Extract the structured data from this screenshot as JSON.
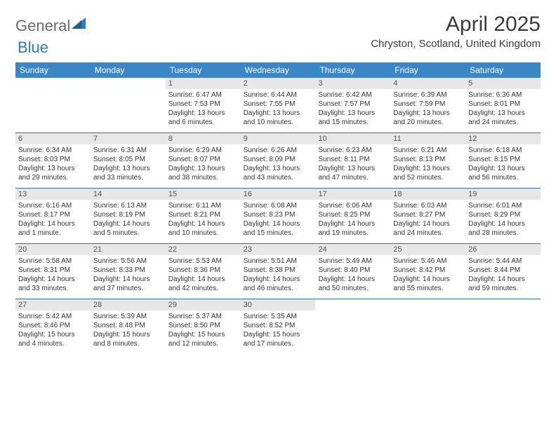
{
  "logo": {
    "text1": "General",
    "text2": "Blue"
  },
  "title": "April 2025",
  "location": "Chryston, Scotland, United Kingdom",
  "colors": {
    "header_bg": "#3b86c6",
    "header_text": "#ffffff",
    "week_divider": "#3e6d97",
    "daynum_bg": "#e7e7e7",
    "daynum_text": "#555555",
    "body_text": "#333333",
    "logo_gray": "#6a6a6a",
    "logo_blue": "#2d7cc1"
  },
  "day_names": [
    "Sunday",
    "Monday",
    "Tuesday",
    "Wednesday",
    "Thursday",
    "Friday",
    "Saturday"
  ],
  "style": {
    "font_family": "Arial",
    "title_fontsize": 30,
    "location_fontsize": 15,
    "header_fontsize": 12,
    "daynum_fontsize": 11,
    "body_fontsize": 10
  },
  "weeks": [
    [
      {
        "empty": true
      },
      {
        "empty": true
      },
      {
        "day": "1",
        "sunrise": "Sunrise: 6:47 AM",
        "sunset": "Sunset: 7:53 PM",
        "daylight": "Daylight: 13 hours and 6 minutes."
      },
      {
        "day": "2",
        "sunrise": "Sunrise: 6:44 AM",
        "sunset": "Sunset: 7:55 PM",
        "daylight": "Daylight: 13 hours and 10 minutes."
      },
      {
        "day": "3",
        "sunrise": "Sunrise: 6:42 AM",
        "sunset": "Sunset: 7:57 PM",
        "daylight": "Daylight: 13 hours and 15 minutes."
      },
      {
        "day": "4",
        "sunrise": "Sunrise: 6:39 AM",
        "sunset": "Sunset: 7:59 PM",
        "daylight": "Daylight: 13 hours and 20 minutes."
      },
      {
        "day": "5",
        "sunrise": "Sunrise: 6:36 AM",
        "sunset": "Sunset: 8:01 PM",
        "daylight": "Daylight: 13 hours and 24 minutes."
      }
    ],
    [
      {
        "day": "6",
        "sunrise": "Sunrise: 6:34 AM",
        "sunset": "Sunset: 8:03 PM",
        "daylight": "Daylight: 13 hours and 29 minutes."
      },
      {
        "day": "7",
        "sunrise": "Sunrise: 6:31 AM",
        "sunset": "Sunset: 8:05 PM",
        "daylight": "Daylight: 13 hours and 33 minutes."
      },
      {
        "day": "8",
        "sunrise": "Sunrise: 6:29 AM",
        "sunset": "Sunset: 8:07 PM",
        "daylight": "Daylight: 13 hours and 38 minutes."
      },
      {
        "day": "9",
        "sunrise": "Sunrise: 6:26 AM",
        "sunset": "Sunset: 8:09 PM",
        "daylight": "Daylight: 13 hours and 43 minutes."
      },
      {
        "day": "10",
        "sunrise": "Sunrise: 6:23 AM",
        "sunset": "Sunset: 8:11 PM",
        "daylight": "Daylight: 13 hours and 47 minutes."
      },
      {
        "day": "11",
        "sunrise": "Sunrise: 6:21 AM",
        "sunset": "Sunset: 8:13 PM",
        "daylight": "Daylight: 13 hours and 52 minutes."
      },
      {
        "day": "12",
        "sunrise": "Sunrise: 6:18 AM",
        "sunset": "Sunset: 8:15 PM",
        "daylight": "Daylight: 13 hours and 56 minutes."
      }
    ],
    [
      {
        "day": "13",
        "sunrise": "Sunrise: 6:16 AM",
        "sunset": "Sunset: 8:17 PM",
        "daylight": "Daylight: 14 hours and 1 minute."
      },
      {
        "day": "14",
        "sunrise": "Sunrise: 6:13 AM",
        "sunset": "Sunset: 8:19 PM",
        "daylight": "Daylight: 14 hours and 5 minutes."
      },
      {
        "day": "15",
        "sunrise": "Sunrise: 6:11 AM",
        "sunset": "Sunset: 8:21 PM",
        "daylight": "Daylight: 14 hours and 10 minutes."
      },
      {
        "day": "16",
        "sunrise": "Sunrise: 6:08 AM",
        "sunset": "Sunset: 8:23 PM",
        "daylight": "Daylight: 14 hours and 15 minutes."
      },
      {
        "day": "17",
        "sunrise": "Sunrise: 6:06 AM",
        "sunset": "Sunset: 8:25 PM",
        "daylight": "Daylight: 14 hours and 19 minutes."
      },
      {
        "day": "18",
        "sunrise": "Sunrise: 6:03 AM",
        "sunset": "Sunset: 8:27 PM",
        "daylight": "Daylight: 14 hours and 24 minutes."
      },
      {
        "day": "19",
        "sunrise": "Sunrise: 6:01 AM",
        "sunset": "Sunset: 8:29 PM",
        "daylight": "Daylight: 14 hours and 28 minutes."
      }
    ],
    [
      {
        "day": "20",
        "sunrise": "Sunrise: 5:58 AM",
        "sunset": "Sunset: 8:31 PM",
        "daylight": "Daylight: 14 hours and 33 minutes."
      },
      {
        "day": "21",
        "sunrise": "Sunrise: 5:56 AM",
        "sunset": "Sunset: 8:33 PM",
        "daylight": "Daylight: 14 hours and 37 minutes."
      },
      {
        "day": "22",
        "sunrise": "Sunrise: 5:53 AM",
        "sunset": "Sunset: 8:36 PM",
        "daylight": "Daylight: 14 hours and 42 minutes."
      },
      {
        "day": "23",
        "sunrise": "Sunrise: 5:51 AM",
        "sunset": "Sunset: 8:38 PM",
        "daylight": "Daylight: 14 hours and 46 minutes."
      },
      {
        "day": "24",
        "sunrise": "Sunrise: 5:49 AM",
        "sunset": "Sunset: 8:40 PM",
        "daylight": "Daylight: 14 hours and 50 minutes."
      },
      {
        "day": "25",
        "sunrise": "Sunrise: 5:46 AM",
        "sunset": "Sunset: 8:42 PM",
        "daylight": "Daylight: 14 hours and 55 minutes."
      },
      {
        "day": "26",
        "sunrise": "Sunrise: 5:44 AM",
        "sunset": "Sunset: 8:44 PM",
        "daylight": "Daylight: 14 hours and 59 minutes."
      }
    ],
    [
      {
        "day": "27",
        "sunrise": "Sunrise: 5:42 AM",
        "sunset": "Sunset: 8:46 PM",
        "daylight": "Daylight: 15 hours and 4 minutes."
      },
      {
        "day": "28",
        "sunrise": "Sunrise: 5:39 AM",
        "sunset": "Sunset: 8:48 PM",
        "daylight": "Daylight: 15 hours and 8 minutes."
      },
      {
        "day": "29",
        "sunrise": "Sunrise: 5:37 AM",
        "sunset": "Sunset: 8:50 PM",
        "daylight": "Daylight: 15 hours and 12 minutes."
      },
      {
        "day": "30",
        "sunrise": "Sunrise: 5:35 AM",
        "sunset": "Sunset: 8:52 PM",
        "daylight": "Daylight: 15 hours and 17 minutes."
      },
      {
        "empty": true
      },
      {
        "empty": true
      },
      {
        "empty": true
      }
    ]
  ]
}
